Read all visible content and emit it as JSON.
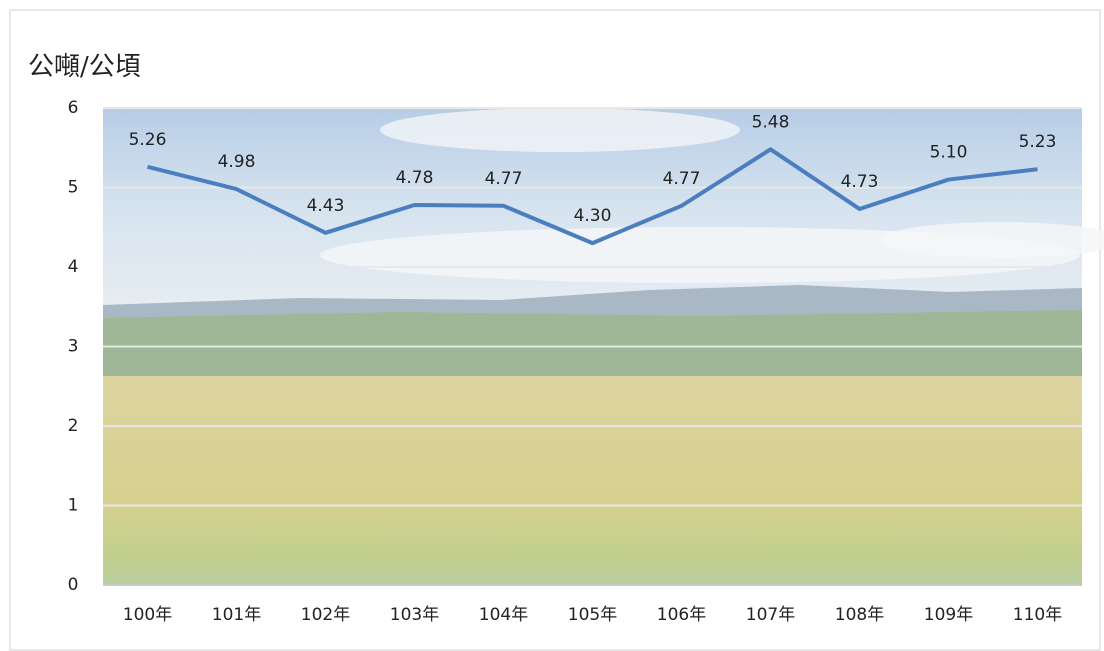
{
  "chart_data": {
    "type": "line",
    "ylabel": "公噸/公頃",
    "categories": [
      "100年",
      "101年",
      "102年",
      "103年",
      "104年",
      "105年",
      "106年",
      "107年",
      "108年",
      "109年",
      "110年"
    ],
    "series": [
      {
        "name": "公噸/公頃",
        "color": "#4a7ebf",
        "values": [
          5.26,
          4.98,
          4.43,
          4.78,
          4.77,
          4.3,
          4.77,
          5.48,
          4.73,
          5.1,
          5.23
        ],
        "value_labels": [
          "5.26",
          "4.98",
          "4.43",
          "4.78",
          "4.77",
          "4.30",
          "4.77",
          "5.48",
          "4.73",
          "5.10",
          "5.23"
        ]
      }
    ],
    "ylim": [
      0,
      6
    ],
    "yticks": [
      0,
      1,
      2,
      3,
      4,
      5,
      6
    ],
    "grid": true
  }
}
